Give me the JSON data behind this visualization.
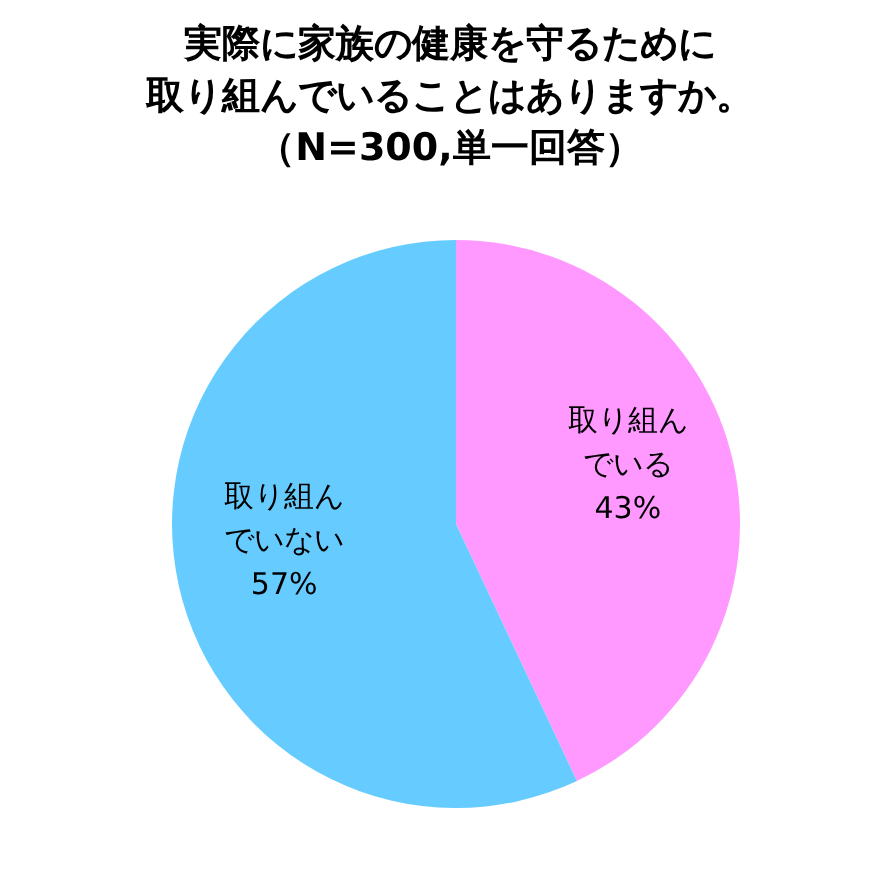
{
  "chart_data": {
    "type": "pie",
    "title": "実際に家族の健康を守るために取り組んでいることはありますか。",
    "subtitle": "（N=300,単一回答）",
    "categories": [
      "取り組んでいる",
      "取り組んでいない"
    ],
    "values": [
      43,
      57
    ],
    "colors": [
      "#ff99ff",
      "#66ccff"
    ],
    "value_labels": [
      "43%",
      "57%"
    ]
  }
}
